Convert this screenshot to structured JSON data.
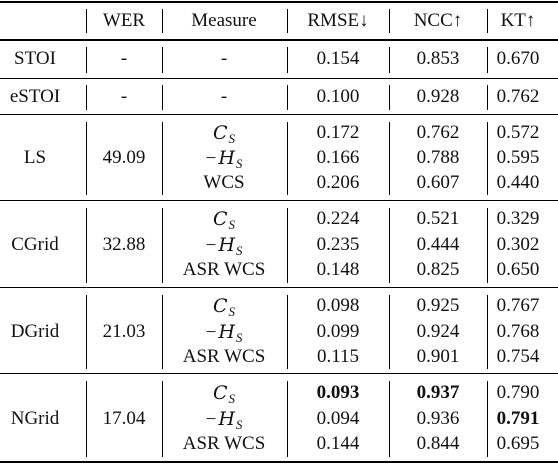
{
  "table": {
    "columns": [
      "",
      "WER",
      "Measure",
      "RMSE↓",
      "NCC↑",
      "KT↑"
    ],
    "groups": [
      {
        "name": "STOI",
        "wer": "-",
        "rows": [
          {
            "measure": "-",
            "rmse": "0.154",
            "ncc": "0.853",
            "kt": "0.670"
          }
        ]
      },
      {
        "name": "eSTOI",
        "wer": "-",
        "rows": [
          {
            "measure": "-",
            "rmse": "0.100",
            "ncc": "0.928",
            "kt": "0.762"
          }
        ]
      },
      {
        "name": "LS",
        "wer": "49.09",
        "rows": [
          {
            "measure": "C_S",
            "rmse": "0.172",
            "ncc": "0.762",
            "kt": "0.572"
          },
          {
            "measure": "−H_S",
            "rmse": "0.166",
            "ncc": "0.788",
            "kt": "0.595"
          },
          {
            "measure": "WCS",
            "rmse": "0.206",
            "ncc": "0.607",
            "kt": "0.440"
          }
        ]
      },
      {
        "name": "CGrid",
        "wer": "32.88",
        "rows": [
          {
            "measure": "C_S",
            "rmse": "0.224",
            "ncc": "0.521",
            "kt": "0.329"
          },
          {
            "measure": "−H_S",
            "rmse": "0.235",
            "ncc": "0.444",
            "kt": "0.302"
          },
          {
            "measure": "ASR WCS",
            "rmse": "0.148",
            "ncc": "0.825",
            "kt": "0.650"
          }
        ]
      },
      {
        "name": "DGrid",
        "wer": "21.03",
        "rows": [
          {
            "measure": "C_S",
            "rmse": "0.098",
            "ncc": "0.925",
            "kt": "0.767"
          },
          {
            "measure": "−H_S",
            "rmse": "0.099",
            "ncc": "0.924",
            "kt": "0.768"
          },
          {
            "measure": "ASR WCS",
            "rmse": "0.115",
            "ncc": "0.901",
            "kt": "0.754"
          }
        ]
      },
      {
        "name": "NGrid",
        "wer": "17.04",
        "rows": [
          {
            "measure": "C_S",
            "rmse": "0.093",
            "ncc": "0.937",
            "kt": "0.790",
            "bold": [
              "rmse",
              "ncc"
            ]
          },
          {
            "measure": "−H_S",
            "rmse": "0.094",
            "ncc": "0.936",
            "kt": "0.791",
            "bold": [
              "kt"
            ]
          },
          {
            "measure": "ASR WCS",
            "rmse": "0.144",
            "ncc": "0.844",
            "kt": "0.695"
          }
        ]
      }
    ]
  }
}
